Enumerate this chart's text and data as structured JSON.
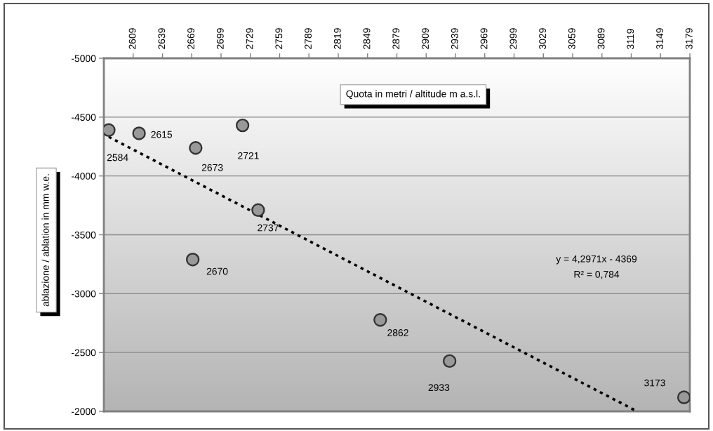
{
  "chart_data": {
    "type": "scatter",
    "xlabel": "Quota in metri / altitude m a.s.l.",
    "ylabel": "ablazione / ablation in mm w.e.",
    "xlim": [
      2579,
      3179
    ],
    "xticks": [
      2609,
      2639,
      2669,
      2699,
      2729,
      2759,
      2789,
      2819,
      2849,
      2879,
      2909,
      2939,
      2969,
      2999,
      3029,
      3059,
      3089,
      3119,
      3149,
      3179
    ],
    "ylim": [
      -2000,
      -5000
    ],
    "yticks": [
      -5000,
      -4500,
      -4000,
      -3500,
      -3000,
      -2500,
      -2000
    ],
    "grid": "y",
    "series": [
      {
        "color": "#999999",
        "marker": "circle",
        "x": [
          2584,
          2615,
          2670,
          2673,
          2721,
          2737,
          2862,
          2933,
          3173
        ],
        "values": [
          -4390,
          -4362,
          -3290,
          -4238,
          -4430,
          -3710,
          -2777,
          -2427,
          -2119
        ]
      },
      {
        "type": "line",
        "color": "#000000",
        "line_style": "dotted",
        "marker": "none",
        "x": [
          2584,
          3125
        ],
        "values": [
          -4332,
          -2000
        ]
      }
    ],
    "annotations": [
      {
        "text": "2584",
        "x": 2584,
        "y": -4390
      },
      {
        "text": "2615",
        "x": 2615,
        "y": -4362
      },
      {
        "text": "2670",
        "x": 2670,
        "y": -3290
      },
      {
        "text": "2673",
        "x": 2673,
        "y": -4238
      },
      {
        "text": "2721",
        "x": 2721,
        "y": -4430
      },
      {
        "text": "2737",
        "x": 2737,
        "y": -3710
      },
      {
        "text": "2862",
        "x": 2862,
        "y": -2777
      },
      {
        "text": "2933",
        "x": 2933,
        "y": -2427
      },
      {
        "text": "3173",
        "x": 3173,
        "y": -2119
      },
      "y = 4,2971x - 4369",
      "R² = 0,784"
    ]
  }
}
